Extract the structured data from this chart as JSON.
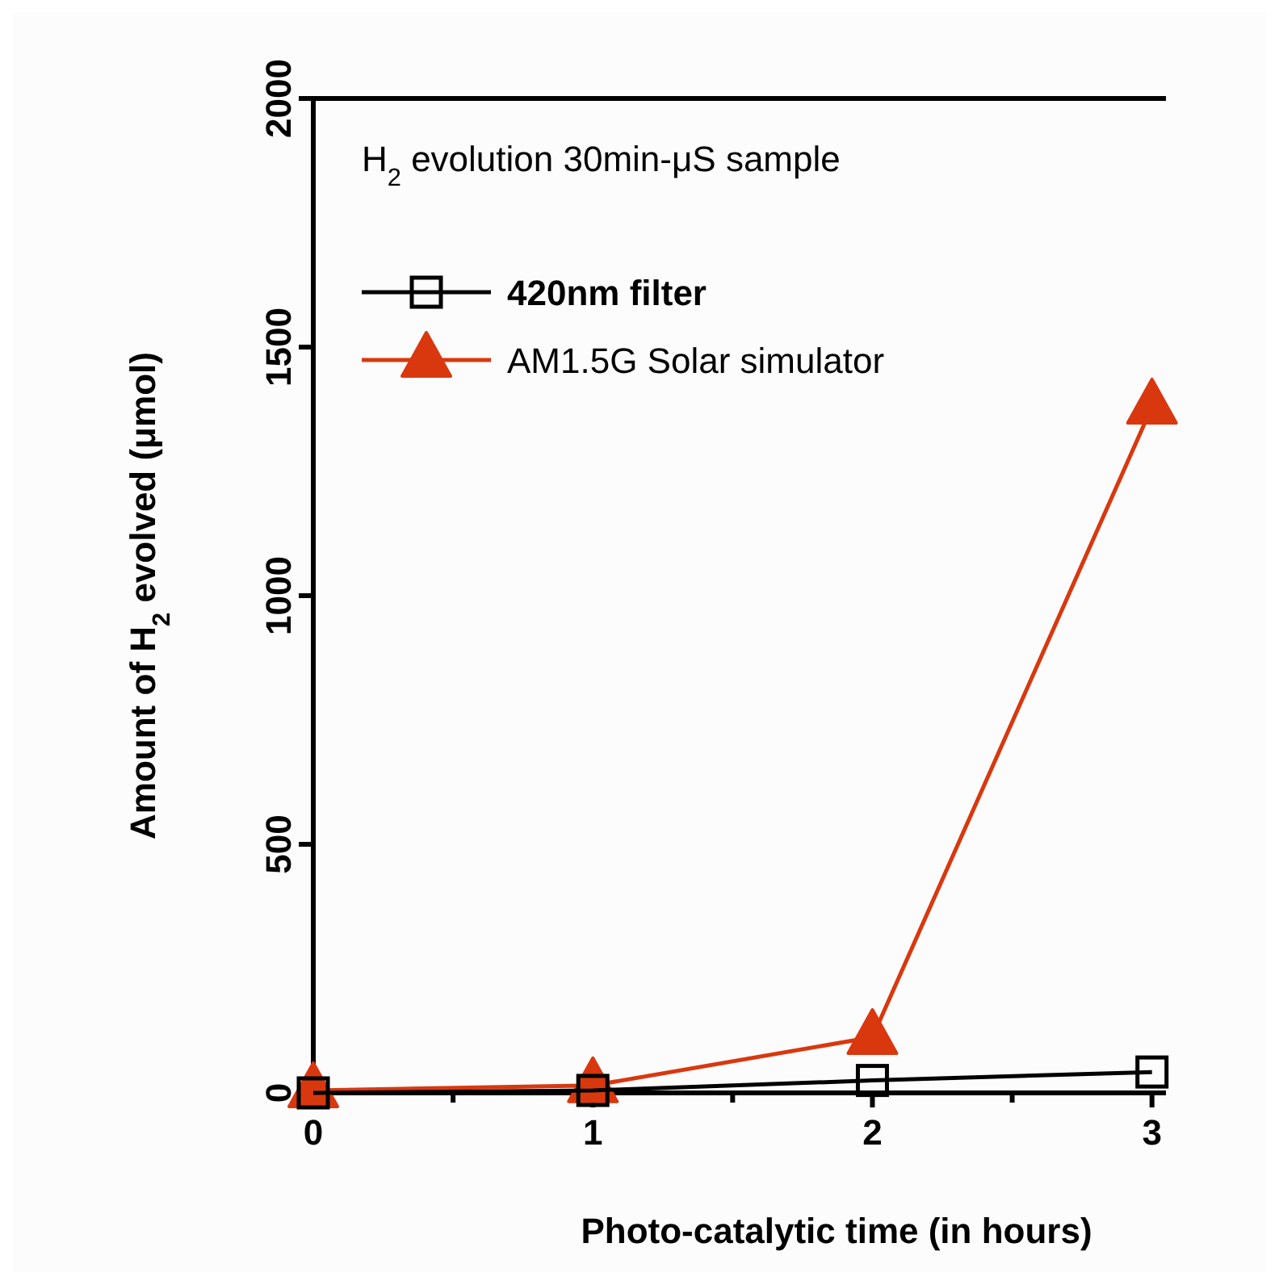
{
  "chart_data": {
    "type": "line",
    "title": "H$_{2}$ evolution 30min-μS sample",
    "xlabel": "Photo-catalytic time (in hours)",
    "ylabel": "Amount of H$_{2}$ evolved (μmol)",
    "x": [
      0,
      1,
      2,
      3
    ],
    "series": [
      {
        "name": "420nm filter",
        "color": "#000000",
        "marker": "square",
        "values": [
          0,
          5,
          25,
          42
        ]
      },
      {
        "name": "AM1.5G Solar simulator",
        "color": "#d9380f",
        "marker": "triangle",
        "values": [
          5,
          15,
          112,
          1380
        ]
      }
    ],
    "xlim": [
      0,
      3.05
    ],
    "xticks": [
      0,
      {
        "value": 0.5,
        "label": null
      },
      1,
      {
        "value": 1.5,
        "label": null
      },
      2,
      {
        "value": 2.5,
        "label": null
      },
      3
    ],
    "ylim": [
      0,
      2000
    ],
    "yticks": [
      0,
      500,
      1000,
      1500,
      2000
    ],
    "grid": false,
    "legend": "top left",
    "line_style": "solid"
  }
}
